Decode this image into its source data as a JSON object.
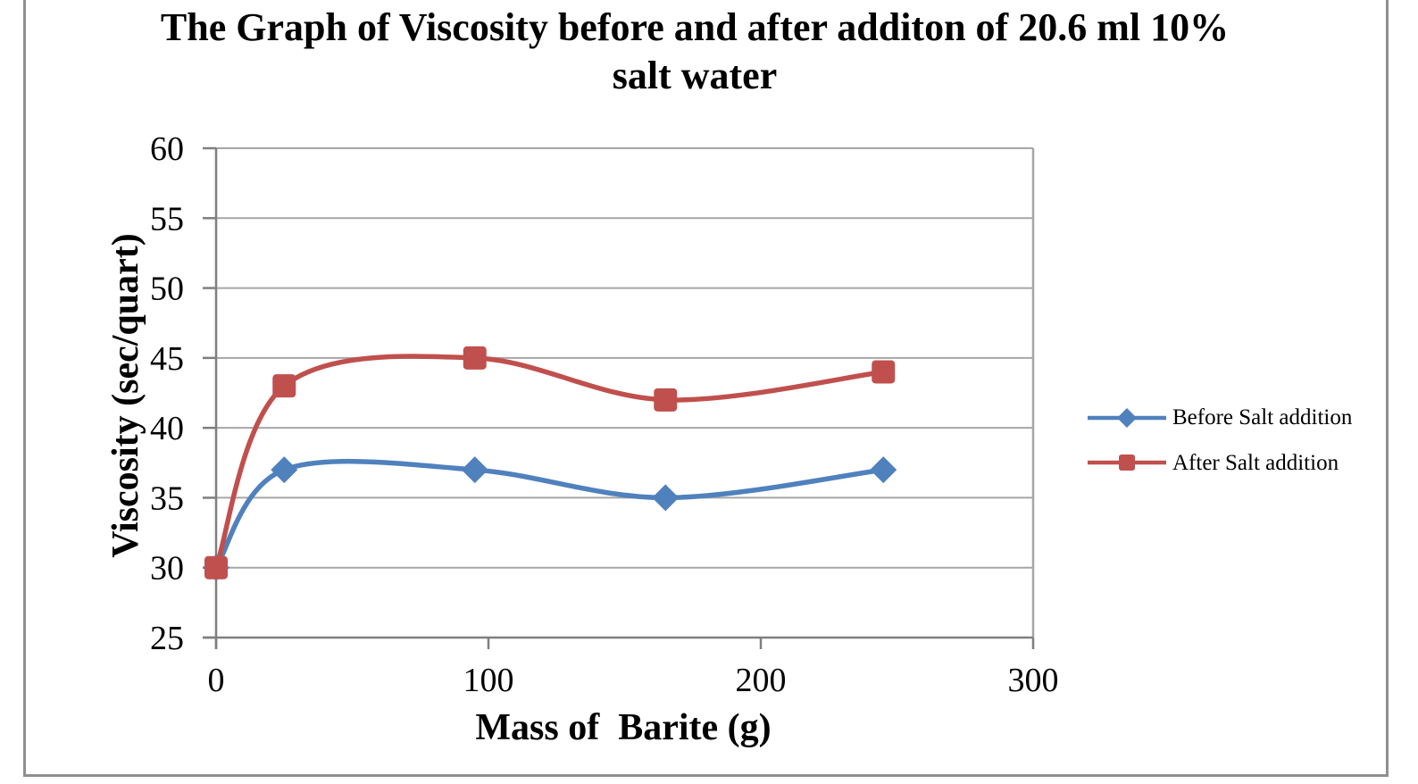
{
  "frame": {
    "border_color": "#8f8f8f"
  },
  "title_lines": [
    "The Graph of Viscosity before and after additon of 20.6 ml 10%",
    "salt water"
  ],
  "chart_data": {
    "type": "line",
    "title": "The Graph of Viscosity before and after additon of 20.6 ml 10% salt water",
    "xlabel": "Mass of  Barite (g)",
    "ylabel": "Viscosity (sec/quart)",
    "xlim": [
      0,
      300
    ],
    "ylim": [
      25,
      60
    ],
    "xticks": [
      0,
      100,
      200,
      300
    ],
    "yticks": [
      25,
      30,
      35,
      40,
      45,
      50,
      55,
      60
    ],
    "grid": "horizontal",
    "legend_position": "right",
    "x": [
      0,
      25,
      95,
      165,
      245
    ],
    "series": [
      {
        "name": "Before Salt addition",
        "color": "#4F81BD",
        "marker": "diamond",
        "values": [
          30,
          37,
          37,
          35,
          37
        ]
      },
      {
        "name": "After Salt addition",
        "color": "#C0504D",
        "marker": "square",
        "values": [
          30,
          43,
          45,
          42,
          44
        ]
      }
    ],
    "colors": {
      "gridline": "#A6A6A6",
      "axis": "#7f7f7f",
      "text": "#000000"
    }
  }
}
